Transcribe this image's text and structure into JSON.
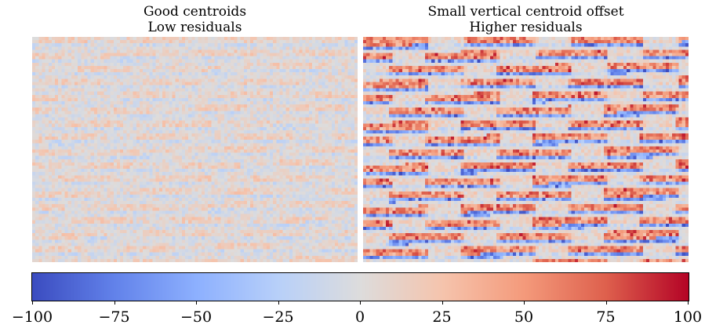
{
  "chart_data": [
    {
      "type": "heatmap",
      "title_lines": [
        "Good centroids",
        "Low residuals"
      ],
      "pattern": "weak horizontal striping; residuals mostly within about ±30",
      "value_range": [
        -40,
        40
      ]
    },
    {
      "type": "heatmap",
      "title_lines": [
        "Small vertical centroid offset",
        "Higher residuals"
      ],
      "pattern": "strong periodic diagonal horizontal bands; positive (red) above negative (blue) in each band",
      "value_range": [
        -100,
        100
      ]
    }
  ],
  "colorbar": {
    "colormap": "coolwarm",
    "range": [
      -100,
      100
    ],
    "ticks": [
      -100,
      -75,
      -50,
      -25,
      0,
      25,
      50,
      75,
      100
    ],
    "tick_labels": [
      "−100",
      "−75",
      "−50",
      "−25",
      "0",
      "25",
      "50",
      "75",
      "100"
    ],
    "colors": {
      "low": "#3b4cc0",
      "mid": "#dddcdc",
      "high": "#b40426"
    }
  }
}
